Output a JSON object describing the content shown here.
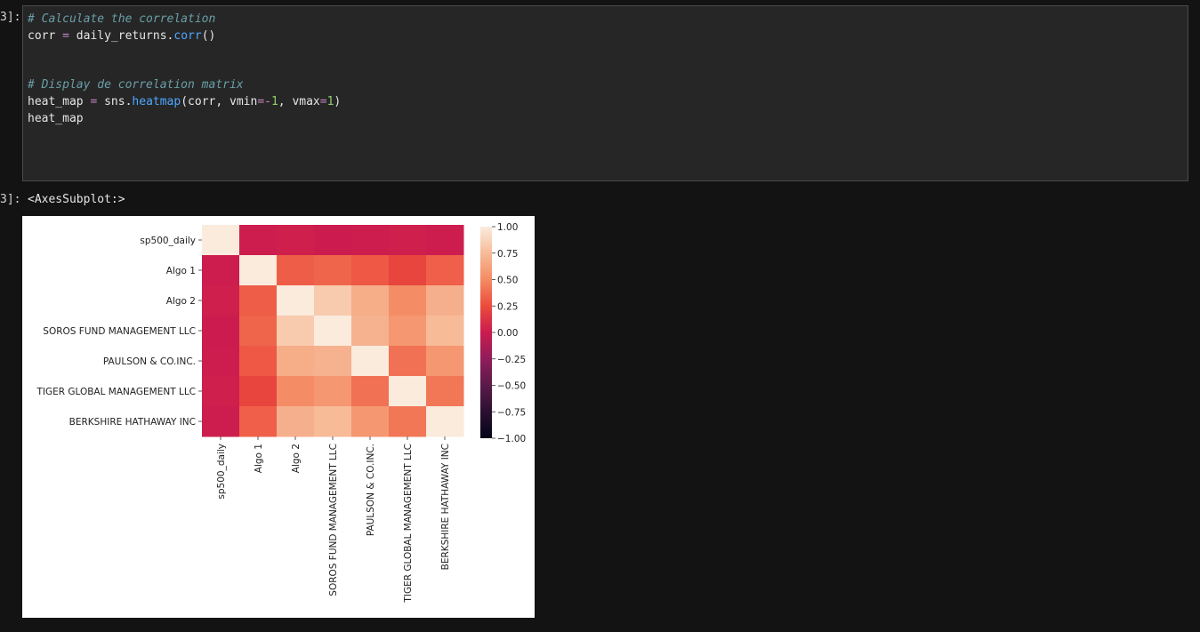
{
  "prompts": {
    "input": "3]:",
    "output": "3]:"
  },
  "code_lines": [
    [
      {
        "t": "# Calculate the correlation",
        "c": "comment"
      }
    ],
    [
      {
        "t": "corr ",
        "c": "plain"
      },
      {
        "t": "=",
        "c": "op"
      },
      {
        "t": " daily_returns.",
        "c": "plain"
      },
      {
        "t": "corr",
        "c": "fn"
      },
      {
        "t": "()",
        "c": "plain"
      }
    ],
    [],
    [],
    [
      {
        "t": "# Display de correlation matrix",
        "c": "comment"
      }
    ],
    [
      {
        "t": "heat_map ",
        "c": "plain"
      },
      {
        "t": "=",
        "c": "op"
      },
      {
        "t": " sns.",
        "c": "plain"
      },
      {
        "t": "heatmap",
        "c": "fn"
      },
      {
        "t": "(corr, vmin",
        "c": "plain"
      },
      {
        "t": "=-",
        "c": "op"
      },
      {
        "t": "1",
        "c": "num"
      },
      {
        "t": ", vmax",
        "c": "plain"
      },
      {
        "t": "=",
        "c": "op"
      },
      {
        "t": "1",
        "c": "num"
      },
      {
        "t": ")",
        "c": "plain"
      }
    ],
    [
      {
        "t": "heat_map",
        "c": "plain"
      }
    ]
  ],
  "output_text": "<AxesSubplot:>",
  "chart_data": {
    "type": "heatmap",
    "labels": [
      "sp500_daily",
      "Algo 1",
      "Algo 2",
      "SOROS FUND MANAGEMENT LLC",
      "PAULSON & CO.INC. ",
      "TIGER GLOBAL MANAGEMENT LLC",
      "BERKSHIRE HATHAWAY INC"
    ],
    "matrix": [
      [
        1.0,
        0.01,
        0.02,
        0.0,
        0.01,
        0.02,
        0.01
      ],
      [
        0.01,
        1.0,
        0.32,
        0.35,
        0.3,
        0.22,
        0.33
      ],
      [
        0.02,
        0.32,
        1.0,
        0.83,
        0.68,
        0.51,
        0.69
      ],
      [
        0.0,
        0.35,
        0.83,
        1.0,
        0.7,
        0.56,
        0.75
      ],
      [
        0.01,
        0.3,
        0.68,
        0.7,
        1.0,
        0.4,
        0.56
      ],
      [
        0.02,
        0.22,
        0.51,
        0.56,
        0.4,
        1.0,
        0.42
      ],
      [
        0.01,
        0.33,
        0.69,
        0.75,
        0.56,
        0.42,
        1.0
      ]
    ],
    "vmin": -1,
    "vmax": 1,
    "colorbar_ticks": [
      {
        "v": 1.0,
        "label": "1.00"
      },
      {
        "v": 0.75,
        "label": "0.75"
      },
      {
        "v": 0.5,
        "label": "0.50"
      },
      {
        "v": 0.25,
        "label": "0.25"
      },
      {
        "v": 0.0,
        "label": "0.00"
      },
      {
        "v": -0.25,
        "label": "−0.25"
      },
      {
        "v": -0.5,
        "label": "−0.50"
      },
      {
        "v": -0.75,
        "label": "−0.75"
      },
      {
        "v": -1.0,
        "label": "−1.00"
      }
    ],
    "colormap": "rocket",
    "colormap_stops": [
      "#03051a",
      "#2b1030",
      "#5a1a49",
      "#8f1d5a",
      "#cb1b4f",
      "#ec4b3c",
      "#f48b64",
      "#f7bb98",
      "#faebdd"
    ]
  }
}
